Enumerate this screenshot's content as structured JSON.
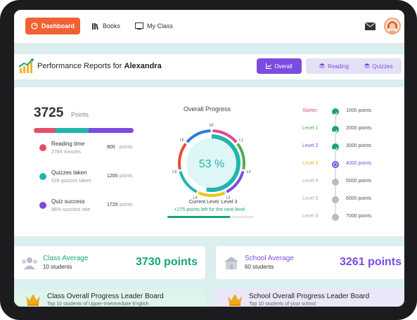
{
  "nav": {
    "dashboard": "Dashboard",
    "books": "Books",
    "my_class": "My Class"
  },
  "header": {
    "title_prefix": "Performance Reports for",
    "student_name": "Alexandra",
    "tabs": [
      "Overall",
      "Reading",
      "Quizzes"
    ]
  },
  "summary": {
    "points": "3725",
    "points_label": "Points",
    "stats": [
      {
        "name": "Reading time",
        "sub": "2784 minutes",
        "value": "800",
        "unit": "points",
        "color": "#e74c6b"
      },
      {
        "name": "Quizzes taken",
        "sub": "528 quizzes taken",
        "value": "1200",
        "unit": "points",
        "color": "#22b5ad"
      },
      {
        "name": "Quiz success",
        "sub": "86% success rate",
        "value": "1725",
        "unit": "points",
        "color": "#7b4ce0"
      }
    ]
  },
  "overall_progress": {
    "title": "Overall Progress",
    "percent": "53 %",
    "percent_value": 0.53,
    "ring_labels": [
      "ST",
      "L1",
      "L2",
      "L3",
      "L4",
      "L5",
      "L6"
    ],
    "current_level": "Current Level: Level 3",
    "points_left": "+275 points left for the next level",
    "bar_fill": 0.72
  },
  "levels": [
    {
      "name": "Starter",
      "points": "1000 points",
      "state": "done",
      "color": "#e04b8a"
    },
    {
      "name": "Level 1",
      "points": "2000 points",
      "state": "done",
      "color": "#4caf50"
    },
    {
      "name": "Level 2",
      "points": "3000 points",
      "state": "done",
      "color": "#7b4ce0"
    },
    {
      "name": "Level 3",
      "points": "4000 points",
      "state": "current",
      "color": "#e8b21a"
    },
    {
      "name": "Level 4",
      "points": "5000 points",
      "state": "locked",
      "color": "#aaaaaa"
    },
    {
      "name": "Level 5",
      "points": "6000 points",
      "state": "locked",
      "color": "#aaaaaa"
    },
    {
      "name": "Level 6",
      "points": "7000 points",
      "state": "locked",
      "color": "#aaaaaa"
    }
  ],
  "class_average": {
    "title": "Class Average",
    "students": "10 students",
    "points": "3730 points"
  },
  "school_average": {
    "title": "School Average",
    "students": "60 students",
    "points": "3261 points"
  },
  "boards": {
    "class_title": "Class Overall Progress Leader Board",
    "class_sub": "Top 10 students of Upper-Intermediate English",
    "school_title": "School Overall Progress Leader Board",
    "school_sub": "Top 10 students of your school"
  },
  "colors": {
    "accent_orange": "#f06234",
    "accent_purple": "#7b4ce0",
    "accent_green": "#1aa37a"
  }
}
